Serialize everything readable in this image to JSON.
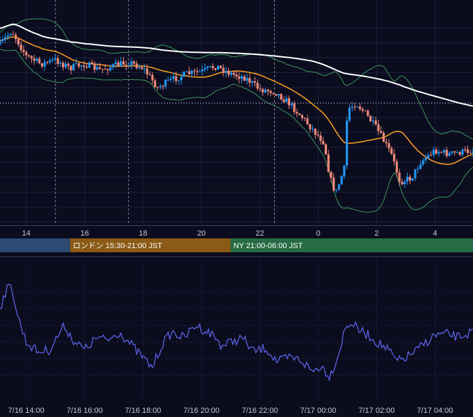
{
  "chart_data": [
    {
      "type": "candlestick",
      "colors": {
        "up": "#2196f3",
        "down": "#ef8a7a",
        "ma_short": "#f59a23",
        "ma_long": "#ffffff",
        "bollinger": "#3a9a5a",
        "background": "#0b0c1e"
      },
      "x_ticks": [
        "14",
        "16",
        "18",
        "20",
        "22",
        "0",
        "2",
        "4"
      ],
      "x_tick_hours": [
        14,
        16,
        18,
        20,
        22,
        24,
        26,
        28
      ],
      "x_range_hours": [
        13.1,
        29.3
      ],
      "session_dividers_hours": [
        15.0,
        17.5,
        22.5
      ],
      "sessions": [
        {
          "label": "",
          "start_hour": 13.1,
          "end_hour": 15.5,
          "color": "#2c4a72"
        },
        {
          "label": "ロンドン 15:30-21:00 JST",
          "start_hour": 15.5,
          "end_hour": 21.0,
          "color": "#8a5a16"
        },
        {
          "label": "NY 21:00-06:00 JST",
          "start_hour": 21.0,
          "end_hour": 29.3,
          "color": "#276b44"
        }
      ],
      "price_shape": [
        [
          13.1,
          0.12
        ],
        [
          13.5,
          0.05
        ],
        [
          14.0,
          0.18
        ],
        [
          14.5,
          0.22
        ],
        [
          15.0,
          0.2
        ],
        [
          15.5,
          0.24
        ],
        [
          16.0,
          0.22
        ],
        [
          16.5,
          0.25
        ],
        [
          17.0,
          0.23
        ],
        [
          17.5,
          0.21
        ],
        [
          18.0,
          0.24
        ],
        [
          18.5,
          0.34
        ],
        [
          19.0,
          0.3
        ],
        [
          19.5,
          0.27
        ],
        [
          20.0,
          0.26
        ],
        [
          20.5,
          0.23
        ],
        [
          21.0,
          0.27
        ],
        [
          21.5,
          0.29
        ],
        [
          22.0,
          0.35
        ],
        [
          22.5,
          0.36
        ],
        [
          23.0,
          0.42
        ],
        [
          23.5,
          0.5
        ],
        [
          23.9,
          0.57
        ],
        [
          24.2,
          0.62
        ],
        [
          24.4,
          0.8
        ],
        [
          24.6,
          0.88
        ],
        [
          24.9,
          0.75
        ],
        [
          25.0,
          0.45
        ],
        [
          25.3,
          0.42
        ],
        [
          25.6,
          0.47
        ],
        [
          26.0,
          0.55
        ],
        [
          26.5,
          0.68
        ],
        [
          26.8,
          0.82
        ],
        [
          27.2,
          0.8
        ],
        [
          27.5,
          0.72
        ],
        [
          28.0,
          0.66
        ],
        [
          28.5,
          0.68
        ],
        [
          29.3,
          0.66
        ]
      ],
      "dotted_level_fraction": 0.42
    },
    {
      "type": "line",
      "x_ticks": [
        "7/16 14:00",
        "7/16 16:00",
        "7/16 18:00",
        "7/16 20:00",
        "7/16 22:00",
        "7/17 00:00",
        "7/17 02:00",
        "7/17 04:00"
      ],
      "colors": {
        "line": "#5b63e6"
      },
      "shape": [
        [
          13.1,
          0.28
        ],
        [
          13.3,
          0.1
        ],
        [
          13.5,
          0.05
        ],
        [
          13.7,
          0.35
        ],
        [
          14.0,
          0.62
        ],
        [
          14.4,
          0.72
        ],
        [
          14.8,
          0.7
        ],
        [
          15.1,
          0.55
        ],
        [
          15.3,
          0.45
        ],
        [
          15.6,
          0.6
        ],
        [
          16.0,
          0.7
        ],
        [
          16.4,
          0.58
        ],
        [
          16.8,
          0.6
        ],
        [
          17.2,
          0.52
        ],
        [
          17.6,
          0.65
        ],
        [
          18.0,
          0.78
        ],
        [
          18.3,
          0.88
        ],
        [
          18.7,
          0.62
        ],
        [
          19.0,
          0.52
        ],
        [
          19.4,
          0.58
        ],
        [
          19.8,
          0.45
        ],
        [
          20.1,
          0.5
        ],
        [
          20.4,
          0.55
        ],
        [
          20.7,
          0.66
        ],
        [
          21.0,
          0.62
        ],
        [
          21.4,
          0.58
        ],
        [
          21.8,
          0.72
        ],
        [
          22.2,
          0.68
        ],
        [
          22.6,
          0.82
        ],
        [
          23.0,
          0.78
        ],
        [
          23.4,
          0.8
        ],
        [
          23.8,
          0.92
        ],
        [
          24.1,
          0.86
        ],
        [
          24.4,
          0.97
        ],
        [
          24.7,
          0.74
        ],
        [
          24.9,
          0.5
        ],
        [
          25.1,
          0.42
        ],
        [
          25.4,
          0.5
        ],
        [
          25.7,
          0.55
        ],
        [
          26.0,
          0.62
        ],
        [
          26.4,
          0.7
        ],
        [
          26.7,
          0.82
        ],
        [
          27.0,
          0.78
        ],
        [
          27.4,
          0.7
        ],
        [
          27.7,
          0.62
        ],
        [
          28.0,
          0.55
        ],
        [
          28.4,
          0.54
        ],
        [
          28.8,
          0.57
        ],
        [
          29.3,
          0.52
        ]
      ]
    }
  ]
}
